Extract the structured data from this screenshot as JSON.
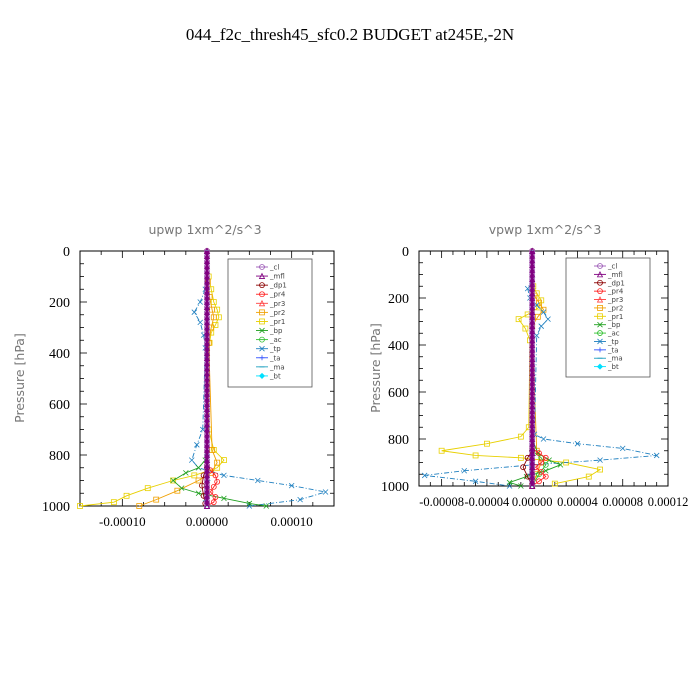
{
  "figure_title": "044_f2c_thresh45_sfc0.2  BUDGET at245E,-2N",
  "legend_entries": [
    "_cl",
    "_mfl",
    "_dp1",
    "_pr4",
    "_pr3",
    "_pr2",
    "_pr1",
    "_bp",
    "_ac",
    "_tp",
    "_ta",
    "_ma",
    "_bt"
  ],
  "series_colors": {
    "_cl": "#9b59b6",
    "_mfl": "#800080",
    "_dp1": "#8b0000",
    "_pr4": "#ff2020",
    "_pr3": "#ff4040",
    "_pr2": "#f0a000",
    "_pr1": "#e8d000",
    "_bp": "#20a020",
    "_ac": "#30c030",
    "_tp": "#2080c0",
    "_ta": "#3050ff",
    "_ma": "#20a0c0",
    "_bt": "#00e0ff"
  },
  "chart_data": [
    {
      "type": "line",
      "title": "upwp   1xm^2/s^3",
      "ylabel": "Pressure [hPa]",
      "xlabel": "",
      "ylim": [
        1000,
        0
      ],
      "xlim": [
        -0.00015,
        0.00015
      ],
      "xticks": [
        -0.0001,
        0,
        0.0001
      ],
      "xtick_labels": [
        "-0.00010",
        "0.00000",
        "0.00010"
      ],
      "yticks": [
        0,
        200,
        400,
        600,
        800,
        1000
      ],
      "ytick_labels": [
        "0",
        "200",
        "400",
        "600",
        "800",
        "1000"
      ],
      "grid": false,
      "legend_position": "top-right",
      "series": [
        {
          "name": "_pr1",
          "x": [
            2e-06,
            5e-06,
            8e-06,
            1.2e-05,
            1.4e-05,
            1e-05,
            5e-06,
            3e-06,
            2e-06,
            8e-06,
            2e-05,
            1.2e-05,
            -1.5e-05,
            -4e-05,
            -7e-05,
            -9.5e-05,
            -0.00011,
            -0.00015
          ],
          "p": [
            100,
            150,
            200,
            230,
            260,
            290,
            320,
            360,
            700,
            780,
            820,
            850,
            880,
            900,
            930,
            960,
            985,
            1000
          ]
        },
        {
          "name": "_pr2",
          "x": [
            1e-06,
            3e-06,
            6e-06,
            8e-06,
            5e-06,
            2e-06,
            6e-06,
            1.2e-05,
            5e-06,
            -1e-05,
            -3.5e-05,
            -6e-05,
            -8e-05
          ],
          "p": [
            120,
            180,
            230,
            260,
            300,
            360,
            780,
            830,
            870,
            900,
            940,
            975,
            1000
          ]
        },
        {
          "name": "_tp",
          "x": [
            -2e-06,
            -8e-06,
            -1.5e-05,
            -8e-06,
            -4e-06,
            -2e-06,
            -5e-06,
            -1.2e-05,
            -1.8e-05,
            -1e-05,
            2e-05,
            6e-05,
            0.0001,
            0.00014,
            0.00011,
            5e-05
          ],
          "p": [
            150,
            200,
            240,
            280,
            330,
            380,
            700,
            760,
            820,
            850,
            880,
            900,
            920,
            945,
            975,
            1000
          ]
        },
        {
          "name": "_bp",
          "x": [
            0.0,
            -2e-06,
            -1e-05,
            -2.5e-05,
            -4e-05,
            -3e-05,
            -1e-05,
            2e-05,
            5e-05,
            7e-05
          ],
          "p": [
            700,
            820,
            850,
            870,
            900,
            930,
            950,
            970,
            990,
            1000
          ]
        },
        {
          "name": "_pr4",
          "x": [
            0.0,
            0.0,
            4e-06,
            1e-05,
            1.2e-05,
            8e-06,
            4e-06,
            1e-05,
            8e-06,
            0.0
          ],
          "p": [
            0,
            840,
            860,
            880,
            905,
            925,
            945,
            965,
            985,
            1000
          ]
        },
        {
          "name": "_dp1",
          "x": [
            0.0,
            0.0,
            -4e-06,
            -6e-06,
            -4e-06,
            -2e-06,
            0.0
          ],
          "p": [
            0,
            850,
            880,
            920,
            960,
            990,
            1000
          ]
        },
        {
          "name": "_ma",
          "x": [
            0.0,
            0.0,
            1e-06,
            -2e-06,
            0.0
          ],
          "p": [
            0,
            800,
            900,
            980,
            1000
          ]
        },
        {
          "name": "_cl",
          "x": [
            0.0,
            0.0
          ],
          "p": [
            0,
            1000
          ]
        },
        {
          "name": "_mfl",
          "x": [
            0.0,
            0.0
          ],
          "p": [
            0,
            1000
          ]
        }
      ]
    },
    {
      "type": "line",
      "title": "vpwp   1xm^2/s^3",
      "ylabel": "Pressure [hPa]",
      "xlabel": "",
      "ylim": [
        1000,
        0
      ],
      "xlim": [
        -0.0001,
        0.00012
      ],
      "xticks": [
        -8e-05,
        -4e-05,
        0,
        4e-05,
        8e-05,
        0.00012
      ],
      "xtick_labels": [
        "-0.00008",
        "-0.00004",
        "0.00000",
        "0.00004",
        "0.00008",
        "0.00012"
      ],
      "yticks": [
        0,
        200,
        400,
        600,
        800,
        1000
      ],
      "ytick_labels": [
        "0",
        "200",
        "400",
        "600",
        "800",
        "1000"
      ],
      "grid": false,
      "legend_position": "top-right",
      "series": [
        {
          "name": "_pr1",
          "x": [
            1e-06,
            4e-06,
            8e-06,
            6e-06,
            -4e-06,
            -1.2e-05,
            -6e-06,
            -2e-06,
            -3e-06,
            -1e-05,
            -4e-05,
            -8e-05,
            -5e-05,
            -1e-05,
            3e-05,
            6e-05,
            5e-05,
            2e-05
          ],
          "p": [
            150,
            180,
            210,
            240,
            270,
            290,
            330,
            380,
            750,
            790,
            820,
            850,
            870,
            880,
            900,
            930,
            960,
            990
          ]
        },
        {
          "name": "_pr2",
          "x": [
            2e-06,
            6e-06,
            1e-05,
            5e-06,
            0.0,
            4e-06,
            8e-06,
            4e-06,
            0.0
          ],
          "p": [
            190,
            220,
            250,
            280,
            320,
            850,
            900,
            950,
            1000
          ]
        },
        {
          "name": "_tp",
          "x": [
            0.0,
            -4e-06,
            -2e-06,
            4e-06,
            1e-05,
            1.4e-05,
            8e-06,
            4e-06,
            2e-06,
            1e-05,
            4e-05,
            8e-05,
            0.00011,
            6e-05,
            0.0,
            -6e-05,
            -9.5e-05,
            -5e-05,
            -2e-05
          ],
          "p": [
            120,
            160,
            200,
            230,
            260,
            290,
            320,
            360,
            780,
            800,
            820,
            840,
            870,
            890,
            910,
            935,
            955,
            980,
            1000
          ]
        },
        {
          "name": "_bp",
          "x": [
            0.0,
            5e-06,
            1.5e-05,
            2.5e-05,
            1.2e-05,
            -5e-06,
            -2e-05,
            -1e-05
          ],
          "p": [
            800,
            860,
            890,
            910,
            935,
            960,
            985,
            1000
          ]
        },
        {
          "name": "_ac",
          "x": [
            0.0,
            8e-06,
            1.2e-05,
            6e-06,
            0.0
          ],
          "p": [
            850,
            880,
            910,
            950,
            1000
          ]
        },
        {
          "name": "_pr4",
          "x": [
            0.0,
            0.0,
            6e-06,
            1.2e-05,
            8e-06,
            3e-06,
            8e-06,
            1.2e-05,
            6e-06,
            0.0
          ],
          "p": [
            0,
            840,
            860,
            880,
            900,
            920,
            940,
            960,
            980,
            1000
          ]
        },
        {
          "name": "_dp1",
          "x": [
            0.0,
            0.0,
            -4e-06,
            -8e-06,
            -4e-06,
            0.0
          ],
          "p": [
            0,
            850,
            880,
            920,
            960,
            1000
          ]
        },
        {
          "name": "_ma",
          "x": [
            0.0,
            0.0,
            -2e-06,
            0.0
          ],
          "p": [
            0,
            800,
            950,
            1000
          ]
        },
        {
          "name": "_cl",
          "x": [
            0.0,
            0.0
          ],
          "p": [
            0,
            1000
          ]
        },
        {
          "name": "_mfl",
          "x": [
            0.0,
            0.0
          ],
          "p": [
            0,
            1000
          ]
        }
      ]
    }
  ]
}
